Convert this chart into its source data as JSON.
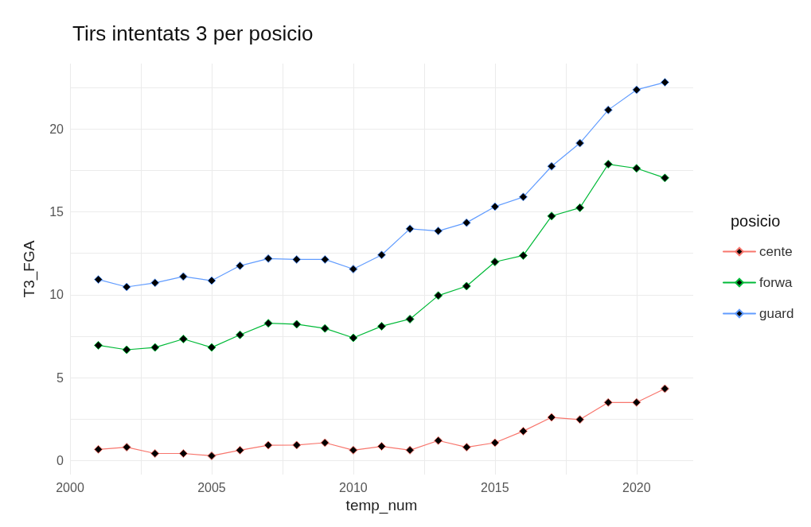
{
  "chart_data": {
    "type": "line",
    "title": "Tirs intentats 3 per posicio",
    "xlabel": "temp_num",
    "ylabel": "T3_FGA",
    "legend_title": "posicio",
    "x": [
      2001,
      2002,
      2003,
      2004,
      2005,
      2006,
      2007,
      2008,
      2009,
      2010,
      2011,
      2012,
      2013,
      2014,
      2015,
      2016,
      2017,
      2018,
      2019,
      2020,
      2021
    ],
    "series": [
      {
        "name": "cente",
        "color": "#f8766d",
        "values": [
          0.67,
          0.8,
          0.42,
          0.42,
          0.28,
          0.62,
          0.92,
          0.93,
          1.07,
          0.62,
          0.85,
          0.62,
          1.2,
          0.8,
          1.07,
          1.77,
          2.6,
          2.47,
          3.5,
          3.5,
          4.33
        ]
      },
      {
        "name": "forwa",
        "color": "#00ba38",
        "values": [
          6.95,
          6.68,
          6.82,
          7.33,
          6.82,
          7.58,
          8.28,
          8.22,
          7.97,
          7.4,
          8.1,
          8.53,
          9.95,
          10.52,
          11.98,
          12.37,
          14.75,
          15.25,
          17.88,
          17.63,
          17.05
        ]
      },
      {
        "name": "guard",
        "color": "#619cff",
        "values": [
          10.92,
          10.47,
          10.72,
          11.1,
          10.85,
          11.75,
          12.18,
          12.13,
          12.13,
          11.55,
          12.4,
          13.98,
          13.85,
          14.35,
          15.32,
          15.9,
          17.75,
          19.15,
          21.15,
          22.37,
          22.82
        ]
      }
    ],
    "xlim": [
      2000,
      2022
    ],
    "xticks": [
      2000,
      {
        "value": 2002.5,
        "label": null
      },
      2005,
      {
        "value": 2007.5,
        "label": null
      },
      2010,
      {
        "value": 2012.5,
        "label": null
      },
      2015,
      {
        "value": 2017.5,
        "label": null
      },
      2020
    ],
    "ylim": [
      -0.85,
      23.95
    ],
    "yticks": [
      0,
      {
        "value": 2.5,
        "label": null
      },
      5,
      {
        "value": 7.5,
        "label": null
      },
      10,
      {
        "value": 12.5,
        "label": null
      },
      15,
      {
        "value": 17.5,
        "label": null
      },
      20,
      {
        "value": 22.5,
        "label": null
      }
    ],
    "grid": true,
    "legend": "right",
    "marker": "diamond",
    "line_style": "solid"
  }
}
